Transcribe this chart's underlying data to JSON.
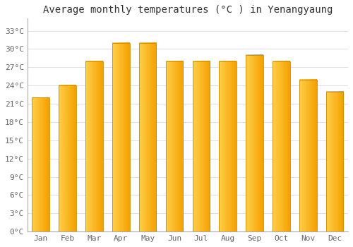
{
  "title": "Average monthly temperatures (°C ) in Yenangyaung",
  "months": [
    "Jan",
    "Feb",
    "Mar",
    "Apr",
    "May",
    "Jun",
    "Jul",
    "Aug",
    "Sep",
    "Oct",
    "Nov",
    "Dec"
  ],
  "values": [
    22,
    24,
    28,
    31,
    31,
    28,
    28,
    28,
    29,
    28,
    25,
    23
  ],
  "bar_color_left": "#FFD04A",
  "bar_color_right": "#F5A000",
  "bar_border_color": "#CC8800",
  "background_color": "#FFFFFF",
  "grid_color": "#E0E0E0",
  "ytick_labels": [
    "0°C",
    "3°C",
    "6°C",
    "9°C",
    "12°C",
    "15°C",
    "18°C",
    "21°C",
    "24°C",
    "27°C",
    "30°C",
    "33°C"
  ],
  "ytick_values": [
    0,
    3,
    6,
    9,
    12,
    15,
    18,
    21,
    24,
    27,
    30,
    33
  ],
  "ylim": [
    0,
    35
  ],
  "title_fontsize": 10,
  "tick_fontsize": 8,
  "font_family": "monospace",
  "bar_width": 0.65
}
